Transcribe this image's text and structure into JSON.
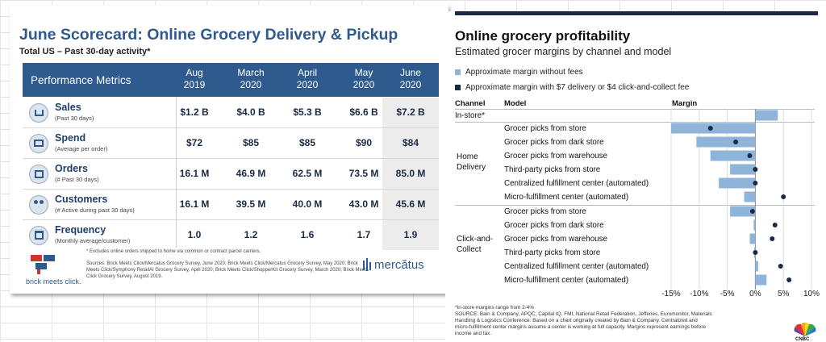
{
  "left": {
    "title": "June Scorecard: Online Grocery Delivery & Pickup",
    "subtitle": "Total US – Past 30-day activity*",
    "metric_header": "Performance Metrics",
    "columns": [
      {
        "l1": "Aug",
        "l2": "2019"
      },
      {
        "l1": "March",
        "l2": "2020"
      },
      {
        "l1": "April",
        "l2": "2020"
      },
      {
        "l1": "May",
        "l2": "2020"
      },
      {
        "l1": "June",
        "l2": "2020"
      }
    ],
    "rows": [
      {
        "name": "Sales",
        "desc": "(Past 30 days)",
        "icon": "cart-icon",
        "values": [
          "$1.2 B",
          "$4.0 B",
          "$5.3 B",
          "$6.6 B",
          "$7.2 B"
        ]
      },
      {
        "name": "Spend",
        "desc": "(Average per order)",
        "icon": "wallet-icon",
        "values": [
          "$72",
          "$85",
          "$85",
          "$90",
          "$84"
        ]
      },
      {
        "name": "Orders",
        "desc": "(# Past 30 days)",
        "icon": "basket-icon",
        "values": [
          "16.1 M",
          "46.9 M",
          "62.5 M",
          "73.5 M",
          "85.0 M"
        ]
      },
      {
        "name": "Customers",
        "desc": "(# Active during past 30 days)",
        "icon": "people-icon",
        "values": [
          "16.1 M",
          "39.5 M",
          "40.0 M",
          "43.0 M",
          "45.6 M"
        ]
      },
      {
        "name": "Frequency",
        "desc": "(Monthly average/customer)",
        "icon": "calendar-icon",
        "values": [
          "1.0",
          "1.2",
          "1.6",
          "1.7",
          "1.9"
        ]
      }
    ],
    "footnote": "* Excludes online orders shipped to home via common or contract parcel carriers.",
    "sources": "Sources: Brick Meets Click/Mercatus Grocery Survey, June 2020; Brick Meets Click/Mercatus Grocery Survey, May 2020; Brick Meets Click/Symphony RetailAI Grocery Survey, April 2020; Brick Meets Click/ShopperKit Grocery Survey, March 2020; Brick Meets Click Grocery Survey, August 2019.",
    "logo_left": "brick meets click.",
    "logo_right": "mercătus"
  },
  "right": {
    "title": "Online grocery profitability",
    "subtitle": "Estimated grocer margins by channel and model",
    "legend": [
      {
        "label": "Approximate margin without fees",
        "color": "#8fb4d9"
      },
      {
        "label": "Approximate margin with $7 delivery or $4 click-and-collect fee",
        "color": "#1b2a44"
      }
    ],
    "headers": {
      "channel": "Channel",
      "model": "Model",
      "margin": "Margin"
    },
    "footnotes": [
      "*In-store margins range from 2-4%",
      "SOURCE: Bain & Company, APQC, Capital IQ, FMI, National Retail Federation, Jefferies, Euromonitor, Materials",
      "Handling & Logistics Conference. Based on a chart originally created by Bain & Company. Centralized and",
      "micro-fulfillment center margins assume a center is working at full capacity. Margins represent earnings before",
      "income and tax."
    ],
    "brand": "CNBC"
  },
  "chart_data": {
    "type": "bar",
    "orientation": "horizontal",
    "title": "Online grocery profitability",
    "subtitle": "Estimated grocer margins by channel and model",
    "xlim": [
      -15,
      10
    ],
    "x_ticks": [
      -15,
      -10,
      -5,
      0,
      5,
      10
    ],
    "x_tick_labels": [
      "-15%",
      "-10%",
      "-5%",
      "0%",
      "5%",
      "10%"
    ],
    "grid": true,
    "groups": [
      {
        "channel": "In-store*",
        "rows": [
          {
            "model": "",
            "without_fees": 4,
            "with_fees": null
          }
        ]
      },
      {
        "channel": "Home\nDelivery",
        "rows": [
          {
            "model": "Grocer picks from store",
            "without_fees": -15,
            "with_fees": -8
          },
          {
            "model": "Grocer picks from dark store",
            "without_fees": -10.5,
            "with_fees": -3.5
          },
          {
            "model": "Grocer picks from warehouse",
            "without_fees": -8,
            "with_fees": -1
          },
          {
            "model": "Third-party picks from store",
            "without_fees": -4.5,
            "with_fees": 0
          },
          {
            "model": "Centralized fulfillment center (automated)",
            "without_fees": -6.5,
            "with_fees": 0
          },
          {
            "model": "Micro-fulfillment center (automated)",
            "without_fees": -2,
            "with_fees": 5
          }
        ]
      },
      {
        "channel": "Click-and-\nCollect",
        "rows": [
          {
            "model": "Grocer picks from store",
            "without_fees": -4.5,
            "with_fees": -0.5
          },
          {
            "model": "Grocer picks from dark store",
            "without_fees": -0.3,
            "with_fees": 3.5
          },
          {
            "model": "Grocer picks from warehouse",
            "without_fees": -1,
            "with_fees": 3
          },
          {
            "model": "Third-party picks from store",
            "without_fees": -0.2,
            "with_fees": 0
          },
          {
            "model": "Centralized fulfillment center (automated)",
            "without_fees": 0.5,
            "with_fees": 4.5
          },
          {
            "model": "Micro-fulfillment center (automated)",
            "without_fees": 2,
            "with_fees": 6
          }
        ]
      }
    ]
  }
}
